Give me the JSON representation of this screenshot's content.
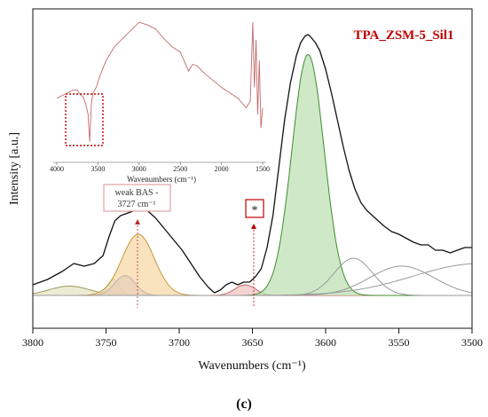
{
  "chart_data": {
    "type": "line",
    "title": "TPA_ZSM-5_Sil1",
    "caption": "(c)",
    "xlabel": "Wavenumbers (cm⁻¹)",
    "ylabel": "Intensity [a.u.]",
    "xlim": [
      3800,
      3500
    ],
    "x_reversed": true,
    "xticks": [
      3800,
      3750,
      3700,
      3650,
      3600,
      3550,
      3500
    ],
    "ylim": [
      0,
      1.0
    ],
    "grid": false,
    "legend": "none",
    "series": [
      {
        "kind": "spectrum",
        "color": "#111111",
        "x": [
          3800,
          3790,
          3780,
          3772,
          3765,
          3758,
          3752,
          3748,
          3744,
          3740,
          3735,
          3730,
          3727,
          3722,
          3716,
          3710,
          3704,
          3698,
          3692,
          3686,
          3680,
          3676,
          3672,
          3668,
          3664,
          3660,
          3656,
          3652,
          3648,
          3644,
          3640,
          3636,
          3632,
          3628,
          3624,
          3620,
          3617,
          3614,
          3612,
          3610,
          3607,
          3604,
          3600,
          3596,
          3592,
          3588,
          3584,
          3580,
          3576,
          3572,
          3568,
          3564,
          3560,
          3555,
          3550,
          3545,
          3540,
          3535,
          3530,
          3525,
          3520,
          3515,
          3510,
          3505,
          3500
        ],
        "y": [
          0.04,
          0.06,
          0.09,
          0.12,
          0.11,
          0.12,
          0.15,
          0.22,
          0.28,
          0.3,
          0.31,
          0.32,
          0.33,
          0.32,
          0.29,
          0.25,
          0.21,
          0.17,
          0.12,
          0.07,
          0.03,
          0.01,
          0.02,
          0.04,
          0.05,
          0.04,
          0.05,
          0.05,
          0.07,
          0.1,
          0.18,
          0.3,
          0.48,
          0.66,
          0.8,
          0.9,
          0.95,
          0.975,
          0.98,
          0.97,
          0.95,
          0.92,
          0.85,
          0.76,
          0.66,
          0.56,
          0.47,
          0.4,
          0.35,
          0.32,
          0.3,
          0.28,
          0.26,
          0.24,
          0.23,
          0.215,
          0.2,
          0.19,
          0.19,
          0.17,
          0.17,
          0.16,
          0.17,
          0.18,
          0.18
        ]
      }
    ],
    "fitted_peaks": [
      {
        "center": 3775,
        "height": 0.035,
        "width": 14,
        "fill": "#e8e4c6",
        "stroke": "#9a9a60"
      },
      {
        "center": 3745,
        "height": 0.06,
        "width": 4,
        "fill": "#b8efe2",
        "stroke": "#5fb79f"
      },
      {
        "center": 3737,
        "height": 0.075,
        "width": 7,
        "fill": "#b9b6ea",
        "stroke": "#3a35b0"
      },
      {
        "center": 3728,
        "height": 0.23,
        "width": 11,
        "fill": "#f7d9a8",
        "stroke": "#c99636"
      },
      {
        "center": 3655,
        "height": 0.04,
        "width": 7,
        "fill": "#f3c4c4",
        "stroke": "#c06a6a"
      },
      {
        "center": 3612,
        "height": 0.905,
        "width": 11,
        "fill": "#bfe2b6",
        "stroke": "#3d8b2e"
      },
      {
        "center": 3581,
        "height": 0.14,
        "width": 13,
        "fill": "none",
        "stroke": "#9a9a9a"
      },
      {
        "center": 3548,
        "height": 0.11,
        "width": 22,
        "fill": "none",
        "stroke": "#9a9a9a"
      },
      {
        "center": 3495,
        "height": 0.12,
        "width": 45,
        "fill": "none",
        "stroke": "#9a9a9a"
      }
    ],
    "annotations": [
      {
        "text": "weak BAS -",
        "text2": "3727 cm⁻¹",
        "x": 3727
      },
      {
        "text": "*",
        "x": 3648
      }
    ],
    "inset": {
      "xlabel": "Wavenumbers (cm⁻¹)",
      "xlim": [
        4000,
        1500
      ],
      "xticks": [
        4000,
        3500,
        3000,
        2500,
        2000,
        1500
      ],
      "color": "#c46a6a",
      "x": [
        4000,
        3900,
        3800,
        3750,
        3720,
        3680,
        3650,
        3620,
        3600,
        3580,
        3560,
        3520,
        3480,
        3400,
        3300,
        3200,
        3100,
        3000,
        2900,
        2800,
        2700,
        2600,
        2500,
        2400,
        2350,
        2300,
        2200,
        2100,
        2000,
        1900,
        1800,
        1700,
        1650,
        1620,
        1600,
        1580,
        1560,
        1540,
        1520,
        1500
      ],
      "y": [
        0.42,
        0.45,
        0.48,
        0.48,
        0.45,
        0.43,
        0.38,
        0.3,
        0.1,
        0.38,
        0.46,
        0.5,
        0.58,
        0.7,
        0.8,
        0.86,
        0.92,
        0.98,
        0.96,
        0.93,
        0.86,
        0.8,
        0.76,
        0.62,
        0.67,
        0.66,
        0.6,
        0.55,
        0.5,
        0.46,
        0.42,
        0.35,
        0.4,
        0.98,
        0.5,
        0.85,
        0.3,
        0.7,
        0.2,
        0.35
      ]
    }
  }
}
